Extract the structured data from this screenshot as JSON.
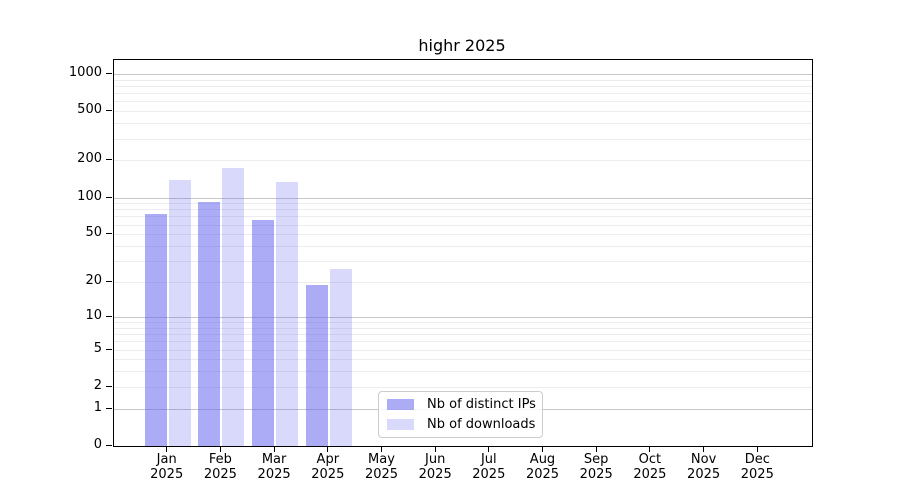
{
  "title": "highr 2025",
  "legend": {
    "items": [
      {
        "label": "Nb of distinct IPs",
        "color": "rgba(102,102,238,0.55)"
      },
      {
        "label": "Nb of downloads",
        "color": "rgba(102,102,238,0.25)"
      }
    ]
  },
  "chart_data": {
    "type": "bar",
    "title": "highr 2025",
    "categories": [
      "Jan",
      "Feb",
      "Mar",
      "Apr",
      "May",
      "Jun",
      "Jul",
      "Aug",
      "Sep",
      "Oct",
      "Nov",
      "Dec"
    ],
    "year_label": "2025",
    "series": [
      {
        "name": "Nb of distinct IPs",
        "values": [
          73,
          92,
          66,
          19,
          0,
          0,
          0,
          0,
          0,
          0,
          0,
          0
        ]
      },
      {
        "name": "Nb of downloads",
        "values": [
          139,
          173,
          133,
          26,
          0,
          0,
          0,
          0,
          0,
          0,
          0,
          0
        ]
      }
    ],
    "y_axis": {
      "scale": "log10(value+1)",
      "tick_values": [
        0,
        1,
        2,
        5,
        10,
        20,
        50,
        100,
        200,
        500,
        1000
      ],
      "major_gridline_values": [
        1,
        10,
        100,
        1000
      ],
      "ylim": [
        0,
        1300
      ]
    },
    "xlabel": "",
    "ylabel": "",
    "grid": true,
    "legend_position": "lower center"
  },
  "colors": {
    "bar_distinct_ips": "rgba(102,102,238,0.55)",
    "bar_downloads": "rgba(102,102,238,0.25)",
    "grid_major": "#c6c6c6",
    "grid_minor": "#ececec",
    "spine": "#000000",
    "text": "#000000",
    "legend_border": "#cccccc"
  }
}
